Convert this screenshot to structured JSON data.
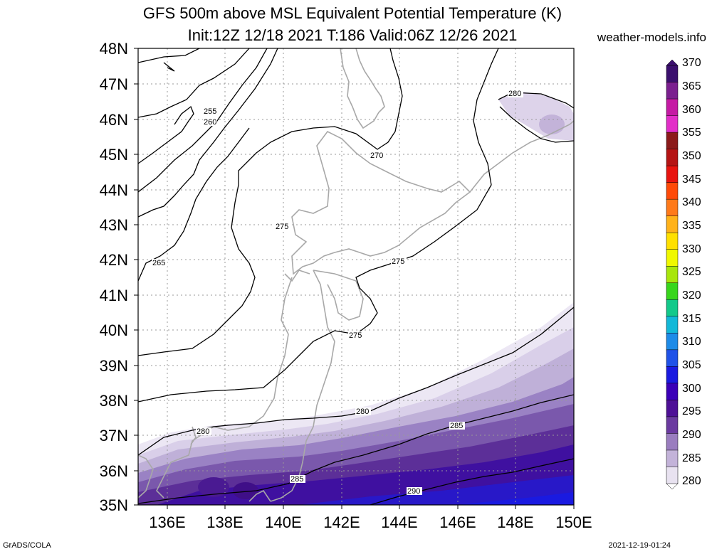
{
  "header": {
    "title_line1": "GFS 500m above MSL Equivalent Potential Temperature (K)",
    "title_line2": "Init:12Z 12/18 2021 T:186 Valid:06Z 12/26 2021",
    "site": "weather-models.info"
  },
  "axes": {
    "lat_labels": [
      "48N",
      "47N",
      "46N",
      "45N",
      "44N",
      "43N",
      "42N",
      "41N",
      "40N",
      "39N",
      "38N",
      "37N",
      "36N",
      "35N"
    ],
    "lon_labels": [
      "136E",
      "138E",
      "140E",
      "142E",
      "144E",
      "146E",
      "148E",
      "150E"
    ]
  },
  "colorbar": {
    "labels": [
      "370",
      "365",
      "360",
      "355",
      "350",
      "345",
      "340",
      "335",
      "330",
      "325",
      "320",
      "315",
      "310",
      "305",
      "300",
      "295",
      "290",
      "285",
      "280"
    ],
    "colors": [
      "#3b0f6e",
      "#7b1f8f",
      "#c51aa4",
      "#e22ec8",
      "#8b1a1a",
      "#b51414",
      "#e8140f",
      "#ff4a08",
      "#ff7a1a",
      "#ffb21a",
      "#ffe000",
      "#f0f800",
      "#a8e60c",
      "#38d61c",
      "#12c98a",
      "#12b8d8",
      "#1d8be8",
      "#1f52e8",
      "#1a1ae0",
      "#3b00b8",
      "#4e1096",
      "#6b3aa0",
      "#9a7dbf",
      "#c3b3d9",
      "#e8e2f0"
    ]
  },
  "contour_labels": [
    {
      "text": "255"
    },
    {
      "text": "260"
    },
    {
      "text": "265"
    },
    {
      "text": "270"
    },
    {
      "text": "275"
    },
    {
      "text": "275"
    },
    {
      "text": "275"
    },
    {
      "text": "280"
    },
    {
      "text": "280"
    },
    {
      "text": "280"
    },
    {
      "text": "285"
    },
    {
      "text": "285"
    },
    {
      "text": "290"
    }
  ],
  "footer": {
    "left": "GrADS/COLA",
    "right": "2021-12-19-01:24"
  }
}
